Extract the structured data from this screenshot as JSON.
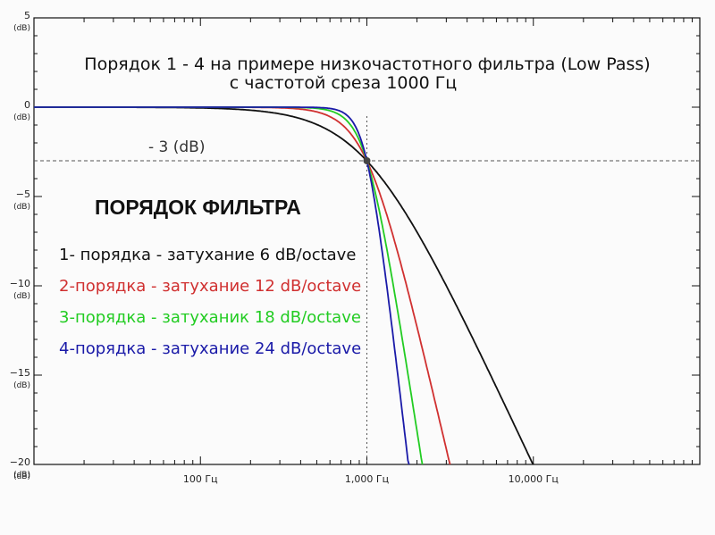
{
  "chart_data": {
    "type": "line",
    "title_line1": "Порядок 1 - 4 на примере низкочастотного фильтра (Low Pass)",
    "title_line2": "с частотой среза 1000 Гц",
    "x_scale": "log",
    "xlim": [
      10,
      100000
    ],
    "ylim": [
      -20,
      5
    ],
    "grid": false,
    "unit_label": "(dB)",
    "x_ticks": [
      {
        "value": 100,
        "label": "100 Гц"
      },
      {
        "value": 1000,
        "label": "1,000 Гц"
      },
      {
        "value": 10000,
        "label": "10,000 Гц"
      }
    ],
    "y_ticks": [
      {
        "value": 5,
        "label": "5"
      },
      {
        "value": 0,
        "label": "0"
      },
      {
        "value": -5,
        "label": "−5"
      },
      {
        "value": -10,
        "label": "−10"
      },
      {
        "value": -15,
        "label": "−15"
      },
      {
        "value": -20,
        "label": "−20"
      }
    ],
    "cutoff_hz": 1000,
    "cutoff_db": -3,
    "cutoff_label": "- 3 (dB)",
    "legend_title": "ПОРЯДОК ФИЛЬТРА",
    "series": [
      {
        "name": "1- порядка - затухание 6 dB/octave",
        "order": 1,
        "color": "#111111"
      },
      {
        "name": "2-порядка - затухание 12 dB/octave",
        "order": 2,
        "color": "#d03030"
      },
      {
        "name": "3-порядка - затуханик 18 dB/octave",
        "order": 3,
        "color": "#22cc22"
      },
      {
        "name": "4-порядка - затухание 24 dB/octave",
        "order": 4,
        "color": "#1a1aa8"
      }
    ]
  }
}
